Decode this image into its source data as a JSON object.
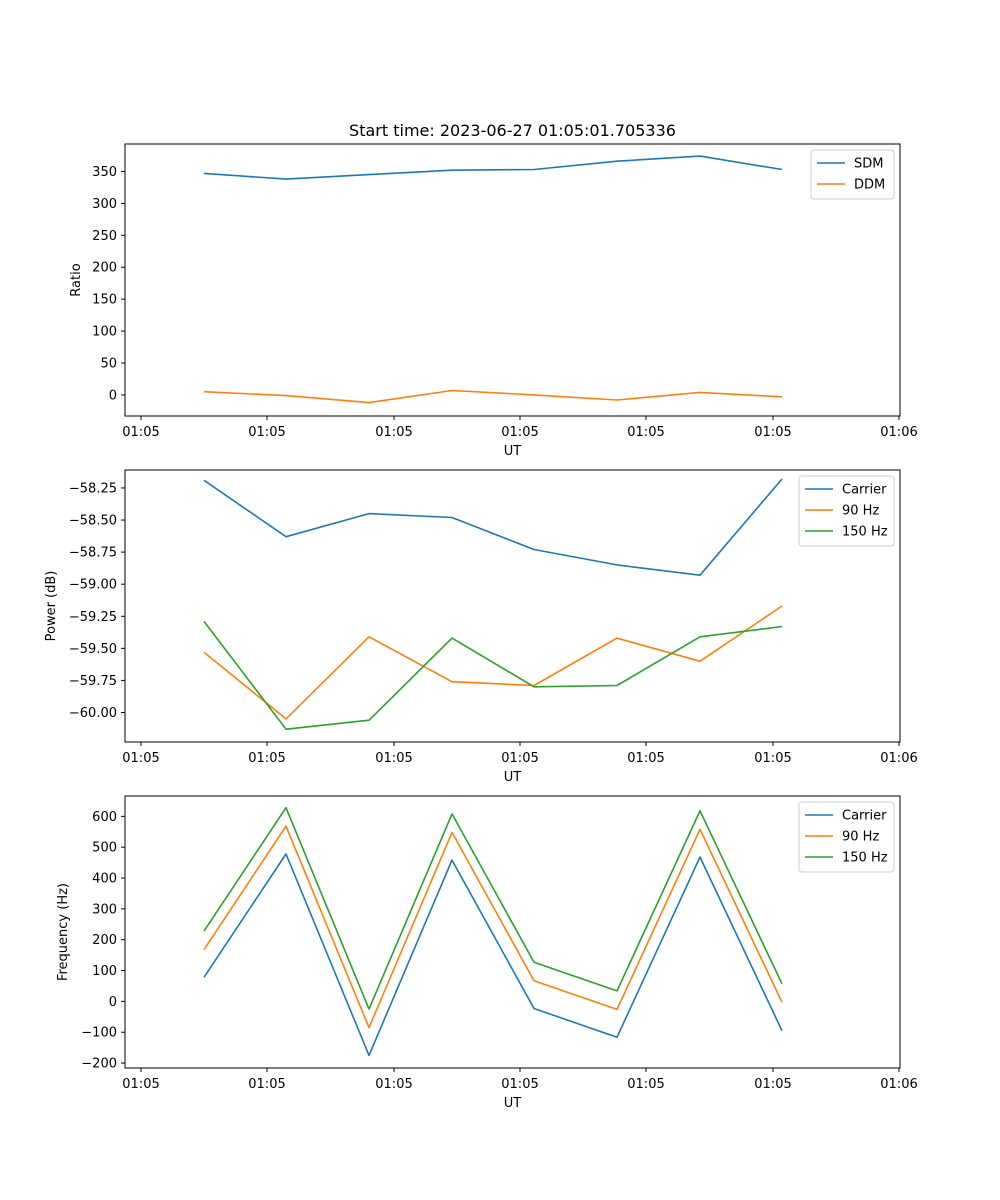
{
  "chart_data": [
    {
      "type": "line",
      "title": "Start time: 2023-06-27 01:05:01.705336",
      "xlabel": "UT",
      "ylabel": "Ratio",
      "x_tick_labels": [
        "01:05",
        "01:05",
        "01:05",
        "01:05",
        "01:05",
        "01:05",
        "01:06"
      ],
      "y_ticks": [
        0,
        50,
        100,
        150,
        200,
        250,
        300,
        350
      ],
      "ylim": [
        -33,
        393
      ],
      "legend_position": "upper right",
      "series": [
        {
          "name": "SDM",
          "color": "#1f77b4",
          "values": [
            347,
            338,
            345,
            352,
            353,
            366,
            374,
            353
          ]
        },
        {
          "name": "DDM",
          "color": "#ff7f0e",
          "values": [
            5,
            -1,
            -12,
            7,
            0,
            -8,
            4,
            -3
          ]
        }
      ]
    },
    {
      "type": "line",
      "title": "",
      "xlabel": "UT",
      "ylabel": "Power (dB)",
      "x_tick_labels": [
        "01:05",
        "01:05",
        "01:05",
        "01:05",
        "01:05",
        "01:05",
        "01:06"
      ],
      "y_ticks": [
        -60.0,
        -59.75,
        -59.5,
        -59.25,
        -59.0,
        -58.75,
        -58.5,
        -58.25
      ],
      "y_tick_labels": [
        "−60.00",
        "−59.75",
        "−59.50",
        "−59.25",
        "−59.00",
        "−58.75",
        "−58.50",
        "−58.25"
      ],
      "ylim": [
        -60.23,
        -58.11
      ],
      "legend_position": "upper right",
      "series": [
        {
          "name": "Carrier",
          "color": "#1f77b4",
          "values": [
            -58.19,
            -58.63,
            -58.45,
            -58.48,
            -58.73,
            -58.85,
            -58.93,
            -58.18
          ]
        },
        {
          "name": "90 Hz",
          "color": "#ff7f0e",
          "values": [
            -59.53,
            -60.05,
            -59.41,
            -59.76,
            -59.79,
            -59.42,
            -59.6,
            -59.17
          ]
        },
        {
          "name": "150 Hz",
          "color": "#2ca02c",
          "values": [
            -59.29,
            -60.13,
            -60.06,
            -59.42,
            -59.8,
            -59.79,
            -59.41,
            -59.33
          ]
        }
      ]
    },
    {
      "type": "line",
      "title": "",
      "xlabel": "UT",
      "ylabel": "Frequency (Hz)",
      "x_tick_labels": [
        "01:05",
        "01:05",
        "01:05",
        "01:05",
        "01:05",
        "01:05",
        "01:06"
      ],
      "y_ticks": [
        -200,
        -100,
        0,
        100,
        200,
        300,
        400,
        500,
        600
      ],
      "y_tick_labels": [
        "−200",
        "−100",
        "0",
        "100",
        "200",
        "300",
        "400",
        "500",
        "600"
      ],
      "ylim": [
        -216,
        666
      ],
      "legend_position": "upper right",
      "series": [
        {
          "name": "Carrier",
          "color": "#1f77b4",
          "values": [
            78,
            478,
            -175,
            458,
            -23,
            -116,
            468,
            -95
          ]
        },
        {
          "name": "90 Hz",
          "color": "#ff7f0e",
          "values": [
            168,
            568,
            -85,
            548,
            67,
            -26,
            558,
            -3
          ]
        },
        {
          "name": "150 Hz",
          "color": "#2ca02c",
          "values": [
            228,
            628,
            -25,
            608,
            127,
            34,
            618,
            57
          ]
        }
      ]
    }
  ]
}
